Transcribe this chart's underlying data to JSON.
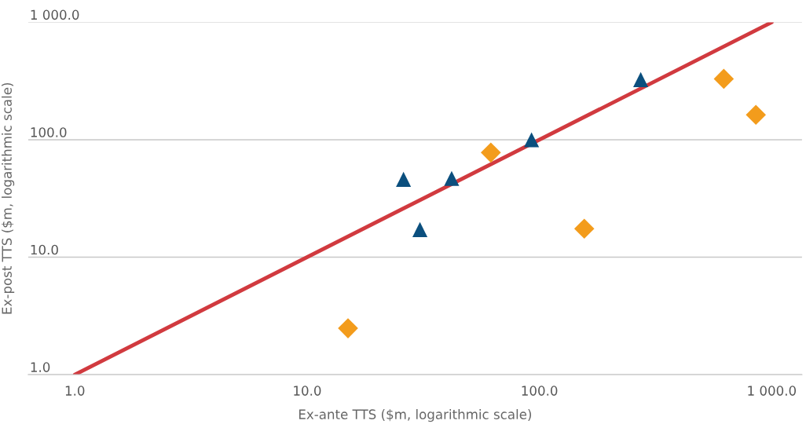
{
  "chart_data": {
    "type": "scatter",
    "xlabel": "Ex-ante TTS ($m, logarithmic scale)",
    "ylabel": "Ex-post TTS ($m, logarithmic scale)",
    "log": "xy",
    "grid": "y",
    "legend": false,
    "xlim": [
      0.63,
      1350
    ],
    "ylim": [
      1,
      1000
    ],
    "xticks": [
      {
        "value": 1,
        "label": "1.0"
      },
      {
        "value": 10,
        "label": "10.0"
      },
      {
        "value": 100,
        "label": "100.0"
      },
      {
        "value": 1000,
        "label": "1 000.0"
      }
    ],
    "yticks": [
      {
        "value": 1,
        "label": "1.0"
      },
      {
        "value": 10,
        "label": "10.0"
      },
      {
        "value": 100,
        "label": "100.0"
      },
      {
        "value": 1000,
        "label": "1 000.0"
      }
    ],
    "series": [
      {
        "type": "line",
        "color": "#d13a3f",
        "x": [
          1,
          1000
        ],
        "values": [
          1,
          1000
        ],
        "marker": "none"
      },
      {
        "color": "#0b4f7e",
        "marker": "triangle",
        "x": [
          26,
          30.6,
          41.9,
          92.5,
          273
        ],
        "values": [
          46,
          17.2,
          46.8,
          100,
          325
        ]
      },
      {
        "color": "#f39c1c",
        "marker": "diamond",
        "x": [
          15.0,
          61.8,
          156,
          622,
          855
        ],
        "values": [
          2.48,
          77.7,
          17.5,
          330,
          163
        ]
      }
    ]
  }
}
